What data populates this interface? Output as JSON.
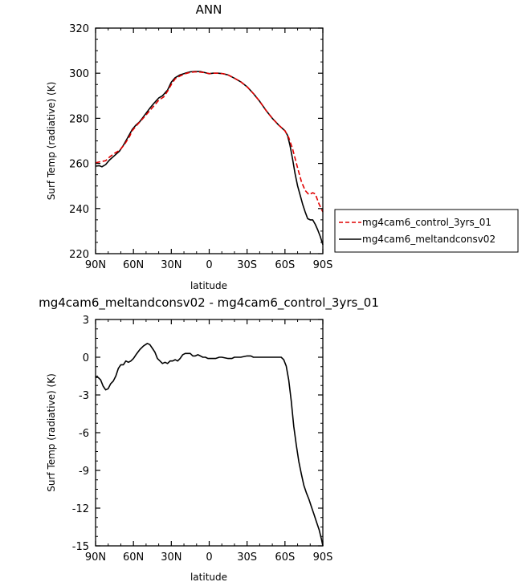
{
  "chart_data": [
    {
      "type": "line",
      "title": "ANN",
      "xlabel": "latitude",
      "ylabel": "Surf Temp (radiative) (K)",
      "xlim": [
        90,
        -90
      ],
      "ylim": [
        220,
        320
      ],
      "x_ticks": [
        90,
        60,
        30,
        0,
        -30,
        -60,
        -90
      ],
      "x_tick_labels": [
        "90N",
        "60N",
        "30N",
        "0",
        "30S",
        "60S",
        "90S"
      ],
      "y_ticks": [
        220,
        240,
        260,
        280,
        300,
        320
      ],
      "y_tick_labels": [
        "220",
        "240",
        "260",
        "280",
        "300",
        "320"
      ],
      "grid": false,
      "legend_position": "right",
      "series": [
        {
          "name": "mg4cam6_control_3yrs_01",
          "color": "#e00000",
          "dash": "dashed",
          "points": [
            [
              90,
              260.3
            ],
            [
              86,
              260.8
            ],
            [
              82,
              261.2
            ],
            [
              79,
              262.8
            ],
            [
              75,
              264.5
            ],
            [
              71,
              265.8
            ],
            [
              67,
              268.5
            ],
            [
              63,
              272
            ],
            [
              61,
              274.5
            ],
            [
              58,
              276.5
            ],
            [
              54,
              279
            ],
            [
              50,
              281.5
            ],
            [
              47,
              283.5
            ],
            [
              43,
              286
            ],
            [
              40,
              288
            ],
            [
              36,
              289.5
            ],
            [
              33,
              292
            ],
            [
              30,
              295
            ],
            [
              27,
              297.5
            ],
            [
              23,
              298.8
            ],
            [
              19,
              299.8
            ],
            [
              15,
              300.4
            ],
            [
              11,
              300.6
            ],
            [
              7,
              300.5
            ],
            [
              3,
              300.2
            ],
            [
              0,
              299.8
            ],
            [
              -3,
              300
            ],
            [
              -7,
              300
            ],
            [
              -11,
              299.8
            ],
            [
              -15,
              299.2
            ],
            [
              -20,
              297.8
            ],
            [
              -25,
              296.2
            ],
            [
              -30,
              294
            ],
            [
              -35,
              291
            ],
            [
              -40,
              287.5
            ],
            [
              -45,
              283.5
            ],
            [
              -50,
              280
            ],
            [
              -55,
              277
            ],
            [
              -60,
              274.5
            ],
            [
              -63,
              271.5
            ],
            [
              -66,
              266.5
            ],
            [
              -70,
              258
            ],
            [
              -73,
              252
            ],
            [
              -76,
              248
            ],
            [
              -79,
              246.2
            ],
            [
              -82,
              247
            ],
            [
              -84,
              246.5
            ],
            [
              -87,
              242
            ],
            [
              -90,
              238.5
            ]
          ]
        },
        {
          "name": "mg4cam6_meltandconsv02",
          "color": "#000000",
          "dash": "solid",
          "points": [
            [
              90,
              258.8
            ],
            [
              87,
              259
            ],
            [
              85,
              258.5
            ],
            [
              82,
              259.5
            ],
            [
              79,
              261.5
            ],
            [
              75,
              263.5
            ],
            [
              71,
              265.5
            ],
            [
              68,
              268
            ],
            [
              64,
              272
            ],
            [
              61,
              275
            ],
            [
              58,
              277
            ],
            [
              55,
              278.5
            ],
            [
              51,
              281.5
            ],
            [
              47,
              284.5
            ],
            [
              44,
              286.5
            ],
            [
              40,
              289
            ],
            [
              37,
              290
            ],
            [
              33,
              292.5
            ],
            [
              30,
              296
            ],
            [
              27,
              298
            ],
            [
              23,
              299.3
            ],
            [
              19,
              300
            ],
            [
              15,
              300.6
            ],
            [
              11,
              300.8
            ],
            [
              7,
              300.7
            ],
            [
              3,
              300.2
            ],
            [
              0,
              299.8
            ],
            [
              -3,
              300
            ],
            [
              -7,
              300
            ],
            [
              -11,
              299.8
            ],
            [
              -15,
              299.2
            ],
            [
              -20,
              297.8
            ],
            [
              -25,
              296.2
            ],
            [
              -30,
              294
            ],
            [
              -35,
              291
            ],
            [
              -40,
              287.5
            ],
            [
              -45,
              283.5
            ],
            [
              -50,
              280
            ],
            [
              -55,
              277
            ],
            [
              -60,
              274.5
            ],
            [
              -62,
              272.5
            ],
            [
              -64,
              268
            ],
            [
              -66,
              262
            ],
            [
              -68,
              255.5
            ],
            [
              -70,
              250
            ],
            [
              -72,
              246
            ],
            [
              -74,
              242
            ],
            [
              -76,
              238.5
            ],
            [
              -78,
              235.5
            ],
            [
              -80,
              235
            ],
            [
              -82,
              235
            ],
            [
              -84,
              233
            ],
            [
              -86,
              230.5
            ],
            [
              -88,
              227.5
            ],
            [
              -90,
              224
            ]
          ]
        }
      ]
    },
    {
      "type": "line",
      "title": "mg4cam6_meltandconsv02 - mg4cam6_control_3yrs_01",
      "xlabel": "latitude",
      "ylabel": "Surf Temp (radiative) (K)",
      "xlim": [
        90,
        -90
      ],
      "ylim": [
        -15,
        3
      ],
      "x_ticks": [
        90,
        60,
        30,
        0,
        -30,
        -60,
        -90
      ],
      "x_tick_labels": [
        "90N",
        "60N",
        "30N",
        "0",
        "30S",
        "60S",
        "90S"
      ],
      "y_ticks": [
        -15,
        -12,
        -9,
        -6,
        -3,
        0,
        3
      ],
      "y_tick_labels": [
        "-15",
        "-12",
        "-9",
        "-6",
        "-3",
        "0",
        "3"
      ],
      "grid": false,
      "series": [
        {
          "color": "#000000",
          "dash": "solid",
          "points": [
            [
              90,
              -1.6
            ],
            [
              88,
              -1.6
            ],
            [
              86,
              -1.8
            ],
            [
              84,
              -2.3
            ],
            [
              82,
              -2.6
            ],
            [
              80,
              -2.5
            ],
            [
              78,
              -2.1
            ],
            [
              76,
              -1.9
            ],
            [
              74,
              -1.5
            ],
            [
              72,
              -0.9
            ],
            [
              70,
              -0.6
            ],
            [
              68,
              -0.6
            ],
            [
              66,
              -0.3
            ],
            [
              64,
              -0.4
            ],
            [
              62,
              -0.3
            ],
            [
              60,
              -0.1
            ],
            [
              58,
              0.2
            ],
            [
              55,
              0.6
            ],
            [
              52,
              0.9
            ],
            [
              49,
              1.1
            ],
            [
              47,
              1
            ],
            [
              45,
              0.7
            ],
            [
              43,
              0.4
            ],
            [
              41,
              -0.1
            ],
            [
              39,
              -0.3
            ],
            [
              37,
              -0.5
            ],
            [
              35,
              -0.4
            ],
            [
              33,
              -0.5
            ],
            [
              31,
              -0.3
            ],
            [
              29,
              -0.3
            ],
            [
              27,
              -0.2
            ],
            [
              25,
              -0.3
            ],
            [
              23,
              -0.1
            ],
            [
              21,
              0.2
            ],
            [
              19,
              0.3
            ],
            [
              17,
              0.3
            ],
            [
              15,
              0.3
            ],
            [
              13,
              0.1
            ],
            [
              11,
              0.1
            ],
            [
              9,
              0.2
            ],
            [
              7,
              0.1
            ],
            [
              5,
              0
            ],
            [
              3,
              0
            ],
            [
              1,
              -0.1
            ],
            [
              -1,
              -0.1
            ],
            [
              -3,
              -0.1
            ],
            [
              -5,
              -0.1
            ],
            [
              -8,
              0
            ],
            [
              -10,
              0
            ],
            [
              -15,
              -0.1
            ],
            [
              -18,
              -0.1
            ],
            [
              -20,
              0
            ],
            [
              -25,
              0
            ],
            [
              -30,
              0.1
            ],
            [
              -33,
              0.1
            ],
            [
              -35,
              0
            ],
            [
              -40,
              0
            ],
            [
              -45,
              0
            ],
            [
              -50,
              0
            ],
            [
              -55,
              0
            ],
            [
              -57,
              0
            ],
            [
              -59,
              -0.2
            ],
            [
              -61,
              -0.7
            ],
            [
              -63,
              -1.8
            ],
            [
              -65,
              -3.5
            ],
            [
              -67,
              -5.5
            ],
            [
              -69,
              -7
            ],
            [
              -71,
              -8.3
            ],
            [
              -73,
              -9.3
            ],
            [
              -75,
              -10.2
            ],
            [
              -77,
              -10.8
            ],
            [
              -79,
              -11.3
            ],
            [
              -81,
              -11.9
            ],
            [
              -83,
              -12.5
            ],
            [
              -85,
              -13.1
            ],
            [
              -87,
              -13.7
            ],
            [
              -89,
              -14.5
            ],
            [
              -90,
              -15
            ]
          ]
        }
      ]
    }
  ]
}
